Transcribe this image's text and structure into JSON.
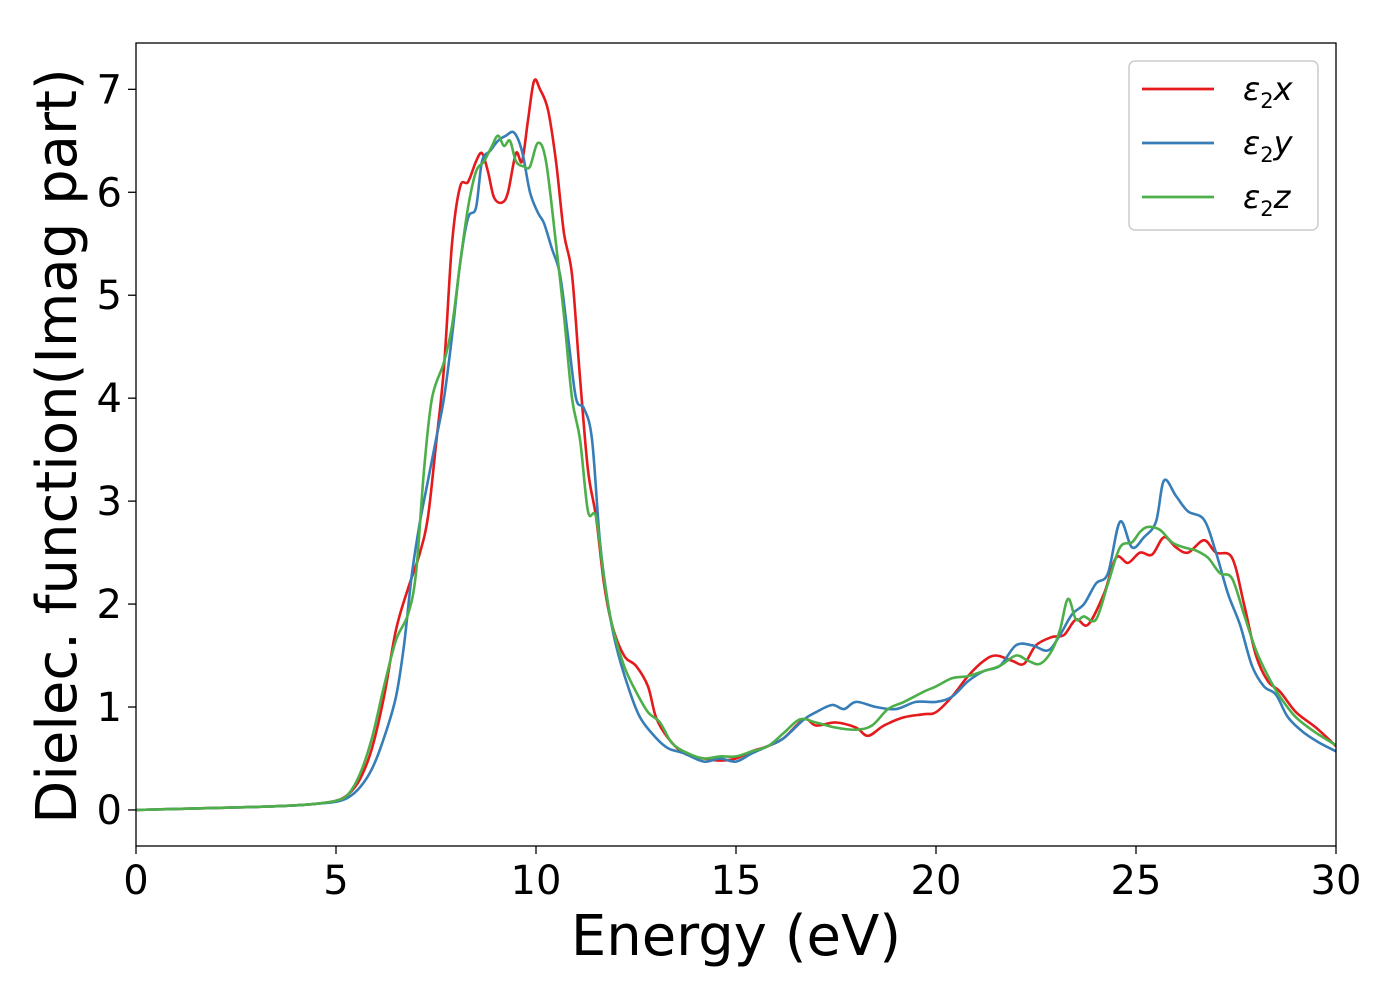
{
  "chart_data": {
    "type": "line",
    "xlabel": "Energy (eV)",
    "ylabel": "Dielec. function(Imag part)",
    "xlim": [
      0,
      30
    ],
    "ylim": [
      -0.35,
      7.45
    ],
    "xticks": [
      0,
      5,
      10,
      15,
      20,
      25,
      30
    ],
    "yticks": [
      0,
      1,
      2,
      3,
      4,
      5,
      6,
      7
    ],
    "grid": false,
    "legend_position": "top-right",
    "series": [
      {
        "name": "ε2x",
        "legend": {
          "base": "ε",
          "sub": "2",
          "suffix": "x"
        },
        "color": "#e41a1c",
        "points": [
          [
            0,
            0
          ],
          [
            1,
            0.01
          ],
          [
            2,
            0.02
          ],
          [
            3,
            0.03
          ],
          [
            4,
            0.045
          ],
          [
            4.5,
            0.06
          ],
          [
            5,
            0.09
          ],
          [
            5.3,
            0.15
          ],
          [
            5.6,
            0.3
          ],
          [
            5.9,
            0.6
          ],
          [
            6.2,
            1.1
          ],
          [
            6.5,
            1.75
          ],
          [
            6.8,
            2.15
          ],
          [
            7.1,
            2.5
          ],
          [
            7.3,
            2.85
          ],
          [
            7.5,
            3.55
          ],
          [
            7.7,
            4.3
          ],
          [
            7.9,
            5.5
          ],
          [
            8.1,
            6.05
          ],
          [
            8.3,
            6.1
          ],
          [
            8.5,
            6.3
          ],
          [
            8.65,
            6.38
          ],
          [
            8.8,
            6.2
          ],
          [
            8.95,
            5.95
          ],
          [
            9.15,
            5.9
          ],
          [
            9.3,
            6.0
          ],
          [
            9.5,
            6.38
          ],
          [
            9.65,
            6.3
          ],
          [
            9.8,
            6.7
          ],
          [
            9.95,
            7.08
          ],
          [
            10.1,
            7.0
          ],
          [
            10.3,
            6.8
          ],
          [
            10.5,
            6.3
          ],
          [
            10.7,
            5.6
          ],
          [
            10.9,
            5.2
          ],
          [
            11.1,
            4.2
          ],
          [
            11.3,
            3.3
          ],
          [
            11.5,
            2.85
          ],
          [
            11.7,
            2.2
          ],
          [
            11.9,
            1.8
          ],
          [
            12.2,
            1.5
          ],
          [
            12.5,
            1.4
          ],
          [
            12.8,
            1.2
          ],
          [
            13.0,
            0.9
          ],
          [
            13.3,
            0.7
          ],
          [
            13.7,
            0.55
          ],
          [
            14.2,
            0.5
          ],
          [
            14.6,
            0.48
          ],
          [
            15.0,
            0.5
          ],
          [
            15.4,
            0.57
          ],
          [
            15.8,
            0.62
          ],
          [
            16.2,
            0.7
          ],
          [
            16.7,
            0.88
          ],
          [
            17.0,
            0.82
          ],
          [
            17.5,
            0.85
          ],
          [
            18.0,
            0.8
          ],
          [
            18.3,
            0.72
          ],
          [
            18.7,
            0.82
          ],
          [
            19.2,
            0.9
          ],
          [
            19.7,
            0.93
          ],
          [
            20.0,
            0.95
          ],
          [
            20.4,
            1.1
          ],
          [
            20.8,
            1.3
          ],
          [
            21.2,
            1.45
          ],
          [
            21.5,
            1.5
          ],
          [
            21.9,
            1.45
          ],
          [
            22.2,
            1.42
          ],
          [
            22.5,
            1.6
          ],
          [
            22.9,
            1.68
          ],
          [
            23.2,
            1.7
          ],
          [
            23.5,
            1.85
          ],
          [
            23.8,
            1.8
          ],
          [
            24.2,
            2.1
          ],
          [
            24.5,
            2.45
          ],
          [
            24.8,
            2.4
          ],
          [
            25.1,
            2.5
          ],
          [
            25.4,
            2.48
          ],
          [
            25.7,
            2.65
          ],
          [
            26.0,
            2.55
          ],
          [
            26.3,
            2.5
          ],
          [
            26.7,
            2.62
          ],
          [
            27.0,
            2.5
          ],
          [
            27.4,
            2.45
          ],
          [
            27.7,
            2.0
          ],
          [
            28.0,
            1.5
          ],
          [
            28.3,
            1.25
          ],
          [
            28.6,
            1.15
          ],
          [
            29.0,
            0.95
          ],
          [
            29.5,
            0.8
          ],
          [
            30,
            0.62
          ]
        ]
      },
      {
        "name": "ε2y",
        "legend": {
          "base": "ε",
          "sub": "2",
          "suffix": "y"
        },
        "color": "#377eb8",
        "points": [
          [
            0,
            0
          ],
          [
            1,
            0.01
          ],
          [
            2,
            0.02
          ],
          [
            3,
            0.03
          ],
          [
            4,
            0.045
          ],
          [
            4.5,
            0.06
          ],
          [
            5,
            0.08
          ],
          [
            5.3,
            0.12
          ],
          [
            5.6,
            0.22
          ],
          [
            5.9,
            0.4
          ],
          [
            6.2,
            0.7
          ],
          [
            6.5,
            1.1
          ],
          [
            6.7,
            1.6
          ],
          [
            6.9,
            2.3
          ],
          [
            7.1,
            2.8
          ],
          [
            7.3,
            3.2
          ],
          [
            7.5,
            3.6
          ],
          [
            7.7,
            4.0
          ],
          [
            7.9,
            4.6
          ],
          [
            8.1,
            5.3
          ],
          [
            8.3,
            5.75
          ],
          [
            8.5,
            5.85
          ],
          [
            8.65,
            6.3
          ],
          [
            8.85,
            6.4
          ],
          [
            9.05,
            6.5
          ],
          [
            9.25,
            6.55
          ],
          [
            9.45,
            6.58
          ],
          [
            9.65,
            6.4
          ],
          [
            9.85,
            6.0
          ],
          [
            10.05,
            5.8
          ],
          [
            10.2,
            5.7
          ],
          [
            10.4,
            5.45
          ],
          [
            10.6,
            5.2
          ],
          [
            10.8,
            4.6
          ],
          [
            11.0,
            4.0
          ],
          [
            11.2,
            3.9
          ],
          [
            11.4,
            3.6
          ],
          [
            11.6,
            2.6
          ],
          [
            11.8,
            2.0
          ],
          [
            12.0,
            1.6
          ],
          [
            12.3,
            1.2
          ],
          [
            12.6,
            0.9
          ],
          [
            13.0,
            0.7
          ],
          [
            13.3,
            0.6
          ],
          [
            13.7,
            0.55
          ],
          [
            14.2,
            0.47
          ],
          [
            14.6,
            0.5
          ],
          [
            15.0,
            0.47
          ],
          [
            15.4,
            0.55
          ],
          [
            15.8,
            0.62
          ],
          [
            16.2,
            0.7
          ],
          [
            16.7,
            0.88
          ],
          [
            17.0,
            0.95
          ],
          [
            17.4,
            1.02
          ],
          [
            17.7,
            0.98
          ],
          [
            18.0,
            1.05
          ],
          [
            18.5,
            1.0
          ],
          [
            19.0,
            0.98
          ],
          [
            19.5,
            1.05
          ],
          [
            20.0,
            1.05
          ],
          [
            20.4,
            1.1
          ],
          [
            20.8,
            1.25
          ],
          [
            21.2,
            1.35
          ],
          [
            21.6,
            1.4
          ],
          [
            22.0,
            1.6
          ],
          [
            22.4,
            1.6
          ],
          [
            22.8,
            1.55
          ],
          [
            23.1,
            1.7
          ],
          [
            23.4,
            1.9
          ],
          [
            23.7,
            2.0
          ],
          [
            24.0,
            2.2
          ],
          [
            24.3,
            2.3
          ],
          [
            24.6,
            2.8
          ],
          [
            24.9,
            2.55
          ],
          [
            25.2,
            2.65
          ],
          [
            25.5,
            2.8
          ],
          [
            25.7,
            3.2
          ],
          [
            26.0,
            3.05
          ],
          [
            26.3,
            2.9
          ],
          [
            26.7,
            2.82
          ],
          [
            27.0,
            2.5
          ],
          [
            27.3,
            2.1
          ],
          [
            27.6,
            1.8
          ],
          [
            27.9,
            1.4
          ],
          [
            28.2,
            1.2
          ],
          [
            28.5,
            1.12
          ],
          [
            28.8,
            0.9
          ],
          [
            29.2,
            0.75
          ],
          [
            29.6,
            0.65
          ],
          [
            30,
            0.57
          ]
        ]
      },
      {
        "name": "ε2z",
        "legend": {
          "base": "ε",
          "sub": "2",
          "suffix": "z"
        },
        "color": "#4daf4a",
        "points": [
          [
            0,
            0
          ],
          [
            1,
            0.01
          ],
          [
            2,
            0.02
          ],
          [
            3,
            0.03
          ],
          [
            4,
            0.045
          ],
          [
            4.5,
            0.06
          ],
          [
            5,
            0.09
          ],
          [
            5.3,
            0.15
          ],
          [
            5.6,
            0.35
          ],
          [
            5.9,
            0.7
          ],
          [
            6.2,
            1.2
          ],
          [
            6.5,
            1.65
          ],
          [
            6.8,
            1.9
          ],
          [
            7.0,
            2.3
          ],
          [
            7.2,
            3.3
          ],
          [
            7.4,
            4.0
          ],
          [
            7.7,
            4.35
          ],
          [
            7.9,
            4.7
          ],
          [
            8.1,
            5.3
          ],
          [
            8.3,
            5.85
          ],
          [
            8.5,
            6.2
          ],
          [
            8.7,
            6.3
          ],
          [
            8.9,
            6.45
          ],
          [
            9.05,
            6.55
          ],
          [
            9.2,
            6.45
          ],
          [
            9.35,
            6.5
          ],
          [
            9.5,
            6.3
          ],
          [
            9.7,
            6.25
          ],
          [
            9.85,
            6.25
          ],
          [
            10.05,
            6.48
          ],
          [
            10.25,
            6.3
          ],
          [
            10.5,
            5.5
          ],
          [
            10.7,
            4.8
          ],
          [
            10.9,
            4.0
          ],
          [
            11.1,
            3.6
          ],
          [
            11.3,
            2.9
          ],
          [
            11.5,
            2.85
          ],
          [
            11.7,
            2.25
          ],
          [
            11.9,
            1.8
          ],
          [
            12.2,
            1.4
          ],
          [
            12.5,
            1.15
          ],
          [
            12.8,
            0.95
          ],
          [
            13.1,
            0.85
          ],
          [
            13.4,
            0.65
          ],
          [
            13.8,
            0.55
          ],
          [
            14.2,
            0.5
          ],
          [
            14.6,
            0.52
          ],
          [
            15.0,
            0.52
          ],
          [
            15.4,
            0.57
          ],
          [
            15.8,
            0.62
          ],
          [
            16.2,
            0.75
          ],
          [
            16.6,
            0.88
          ],
          [
            17.0,
            0.85
          ],
          [
            17.5,
            0.8
          ],
          [
            18.0,
            0.78
          ],
          [
            18.4,
            0.82
          ],
          [
            18.8,
            0.98
          ],
          [
            19.2,
            1.05
          ],
          [
            19.7,
            1.15
          ],
          [
            20.0,
            1.2
          ],
          [
            20.4,
            1.28
          ],
          [
            20.8,
            1.3
          ],
          [
            21.2,
            1.35
          ],
          [
            21.6,
            1.4
          ],
          [
            22.0,
            1.5
          ],
          [
            22.3,
            1.45
          ],
          [
            22.6,
            1.42
          ],
          [
            22.9,
            1.55
          ],
          [
            23.1,
            1.75
          ],
          [
            23.3,
            2.05
          ],
          [
            23.5,
            1.85
          ],
          [
            23.7,
            1.88
          ],
          [
            24.0,
            1.85
          ],
          [
            24.3,
            2.2
          ],
          [
            24.6,
            2.55
          ],
          [
            24.9,
            2.6
          ],
          [
            25.1,
            2.7
          ],
          [
            25.3,
            2.75
          ],
          [
            25.6,
            2.72
          ],
          [
            25.9,
            2.6
          ],
          [
            26.2,
            2.55
          ],
          [
            26.5,
            2.52
          ],
          [
            26.8,
            2.45
          ],
          [
            27.1,
            2.3
          ],
          [
            27.4,
            2.25
          ],
          [
            27.7,
            1.9
          ],
          [
            28.0,
            1.55
          ],
          [
            28.3,
            1.3
          ],
          [
            28.6,
            1.1
          ],
          [
            29.0,
            0.9
          ],
          [
            29.5,
            0.75
          ],
          [
            30,
            0.63
          ]
        ]
      }
    ]
  }
}
